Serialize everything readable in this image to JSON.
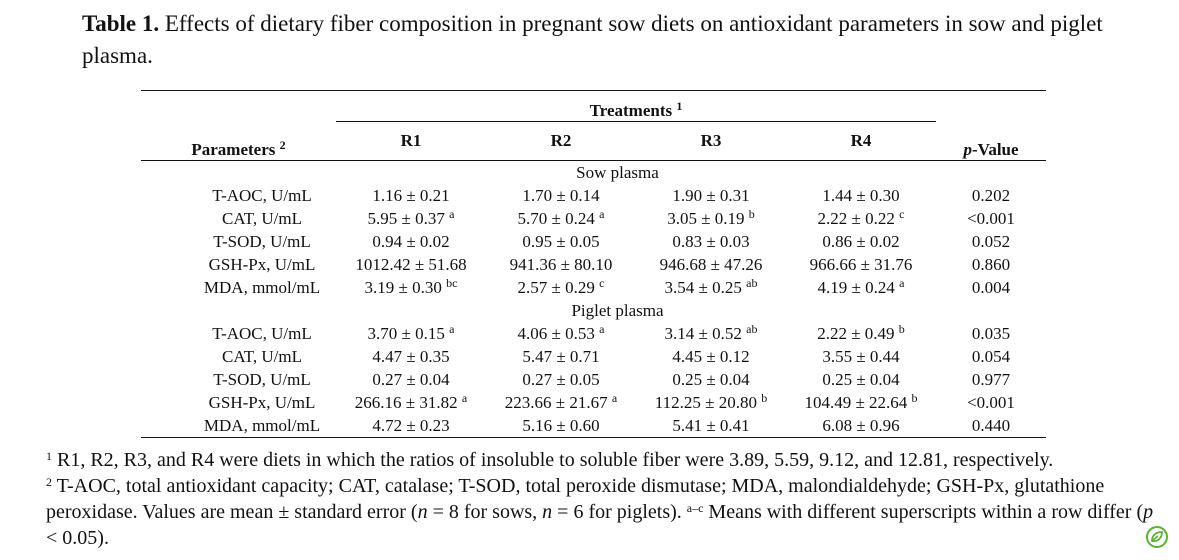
{
  "caption": {
    "label": "Table 1.",
    "text": " Effects of dietary fiber composition in pregnant sow diets on antioxidant parameters in sow and piglet plasma."
  },
  "table": {
    "param_header": "Parameters",
    "param_header_sup": "2",
    "treat_header": "Treatments",
    "treat_header_sup": "1",
    "pvalue_p": "p",
    "pvalue_rest": "-Value",
    "columns": [
      "R1",
      "R2",
      "R3",
      "R4"
    ],
    "groups": [
      {
        "name": "Sow plasma",
        "rows": [
          {
            "param": "T-AOC, U/mL",
            "cells": [
              {
                "v": "1.16 ± 0.21",
                "s": ""
              },
              {
                "v": "1.70 ± 0.14",
                "s": ""
              },
              {
                "v": "1.90 ± 0.31",
                "s": ""
              },
              {
                "v": "1.44 ± 0.30",
                "s": ""
              }
            ],
            "p": "0.202"
          },
          {
            "param": "CAT, U/mL",
            "cells": [
              {
                "v": "5.95 ± 0.37",
                "s": "a"
              },
              {
                "v": "5.70 ± 0.24",
                "s": "a"
              },
              {
                "v": "3.05 ± 0.19",
                "s": "b"
              },
              {
                "v": "2.22 ± 0.22",
                "s": "c"
              }
            ],
            "p": "<0.001"
          },
          {
            "param": "T-SOD, U/mL",
            "cells": [
              {
                "v": "0.94 ± 0.02",
                "s": ""
              },
              {
                "v": "0.95 ± 0.05",
                "s": ""
              },
              {
                "v": "0.83 ± 0.03",
                "s": ""
              },
              {
                "v": "0.86 ± 0.02",
                "s": ""
              }
            ],
            "p": "0.052"
          },
          {
            "param": "GSH-Px, U/mL",
            "cells": [
              {
                "v": "1012.42 ± 51.68",
                "s": ""
              },
              {
                "v": "941.36 ± 80.10",
                "s": ""
              },
              {
                "v": "946.68 ± 47.26",
                "s": ""
              },
              {
                "v": "966.66 ± 31.76",
                "s": ""
              }
            ],
            "p": "0.860"
          },
          {
            "param": "MDA, mmol/mL",
            "cells": [
              {
                "v": "3.19 ± 0.30",
                "s": "bc"
              },
              {
                "v": "2.57 ± 0.29",
                "s": "c"
              },
              {
                "v": "3.54 ± 0.25",
                "s": "ab"
              },
              {
                "v": "4.19 ± 0.24",
                "s": "a"
              }
            ],
            "p": "0.004"
          }
        ]
      },
      {
        "name": "Piglet plasma",
        "rows": [
          {
            "param": "T-AOC, U/mL",
            "cells": [
              {
                "v": "3.70 ± 0.15",
                "s": "a"
              },
              {
                "v": "4.06 ± 0.53",
                "s": "a"
              },
              {
                "v": "3.14 ± 0.52",
                "s": "ab"
              },
              {
                "v": "2.22 ± 0.49",
                "s": "b"
              }
            ],
            "p": "0.035"
          },
          {
            "param": "CAT, U/mL",
            "cells": [
              {
                "v": "4.47 ± 0.35",
                "s": ""
              },
              {
                "v": "5.47 ± 0.71",
                "s": ""
              },
              {
                "v": "4.45 ± 0.12",
                "s": ""
              },
              {
                "v": "3.55 ± 0.44",
                "s": ""
              }
            ],
            "p": "0.054"
          },
          {
            "param": "T-SOD, U/mL",
            "cells": [
              {
                "v": "0.27 ± 0.04",
                "s": ""
              },
              {
                "v": "0.27 ± 0.05",
                "s": ""
              },
              {
                "v": "0.25 ± 0.04",
                "s": ""
              },
              {
                "v": "0.25 ± 0.04",
                "s": ""
              }
            ],
            "p": "0.977"
          },
          {
            "param": "GSH-Px, U/mL",
            "cells": [
              {
                "v": "266.16 ± 31.82",
                "s": "a"
              },
              {
                "v": "223.66 ± 21.67",
                "s": "a"
              },
              {
                "v": "112.25 ± 20.80",
                "s": "b"
              },
              {
                "v": "104.49 ± 22.64",
                "s": "b"
              }
            ],
            "p": "<0.001"
          },
          {
            "param": "MDA, mmol/mL",
            "cells": [
              {
                "v": "4.72 ± 0.23",
                "s": ""
              },
              {
                "v": "5.16 ± 0.60",
                "s": ""
              },
              {
                "v": "5.41 ± 0.41",
                "s": ""
              },
              {
                "v": "6.08 ± 0.96",
                "s": ""
              }
            ],
            "p": "0.440"
          }
        ]
      }
    ]
  },
  "footnotes": {
    "note1_mark": "1",
    "note1_text": " R1, R2, R3, and R4 were diets in which the ratios of insoluble to soluble fiber were 3.89, 5.59, 9.12, and 12.81, respectively.",
    "note2_mark": "2",
    "note2_text_a": " T-AOC, total antioxidant capacity; CAT, catalase; T-SOD, total peroxide dismutase; MDA, malondialdehyde; GSH-Px, glutathione peroxidase. Values are mean ± standard error (",
    "note2_n1": "n",
    "note2_text_b": " = 8 for sows, ",
    "note2_n2": "n",
    "note2_text_c": " = 6 for piglets).  ",
    "note3_mark": "a–c",
    "note3_text_a": " Means with different superscripts within a row differ (",
    "note3_p": "p",
    "note3_text_b": " < 0.05)."
  },
  "logo": {
    "icon": "publisher-leaf-icon",
    "color": "#58b42c"
  }
}
